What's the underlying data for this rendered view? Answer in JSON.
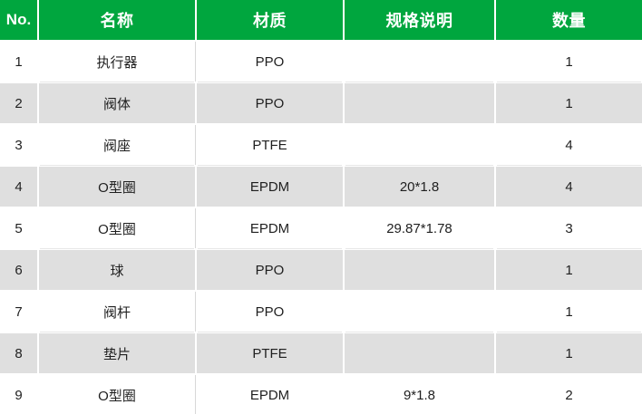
{
  "chart_data": {
    "type": "table",
    "title": "",
    "columns": [
      "No.",
      "名称",
      "材质",
      "规格说明",
      "数量"
    ],
    "column_keys": [
      "no",
      "name",
      "material",
      "spec",
      "qty"
    ],
    "rows": [
      [
        "1",
        "执行器",
        "PPO",
        "",
        "1"
      ],
      [
        "2",
        "阀体",
        "PPO",
        "",
        "1"
      ],
      [
        "3",
        "阀座",
        "PTFE",
        "",
        "4"
      ],
      [
        "4",
        "O型圈",
        "EPDM",
        "20*1.8",
        "4"
      ],
      [
        "5",
        "O型圈",
        "EPDM",
        "29.87*1.78",
        "3"
      ],
      [
        "6",
        "球",
        "PPO",
        "",
        "1"
      ],
      [
        "7",
        "阀杆",
        "PPO",
        "",
        "1"
      ],
      [
        "8",
        "垫片",
        "PTFE",
        "",
        "1"
      ],
      [
        "9",
        "O型圈",
        "EPDM",
        "9*1.8",
        "2"
      ]
    ],
    "layout": {
      "header_position": "top",
      "striped": true,
      "stripe_rule": "even-numbered rows gray, odd white",
      "gridlines": "2px white gaps between cells",
      "text_align": "center"
    }
  },
  "colors": {
    "header_bg": "#00a63e",
    "header_text": "#ffffff",
    "stripe_bg": "#dfdfdf",
    "row_bg": "#ffffff",
    "body_text": "#1f1f1f",
    "hairline": "#d8d8d8"
  }
}
